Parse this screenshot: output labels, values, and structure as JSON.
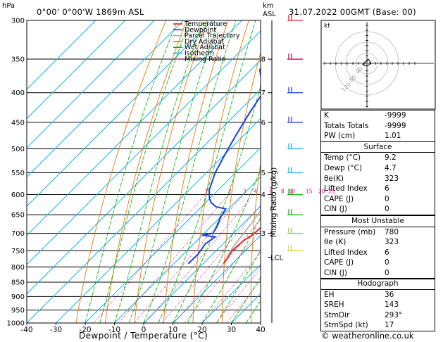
{
  "header": {
    "location": "0°00' 0°00'W 1869m ASL",
    "datetime": "31.07.2022 00GMT (Base: 00)",
    "hpa_unit": "hPa",
    "km_unit": "km",
    "asl": "ASL"
  },
  "footer": {
    "xlabel": "Dewpoint / Temperature (°C)",
    "copyright": "© weatheronline.co.uk"
  },
  "side_labels": {
    "mixing_ratio": "Mixing Ratio (g/kg)",
    "lcl": "LCL"
  },
  "legend": [
    {
      "label": "Temperature",
      "color": "#e8222a",
      "style": "solid"
    },
    {
      "label": "Dewpoint",
      "color": "#1a3fe8",
      "style": "solid"
    },
    {
      "label": "Parcel Trajectory",
      "color": "#aaaaaa",
      "style": "solid"
    },
    {
      "label": "Dry Adiabat",
      "color": "#e07a10",
      "style": "solid"
    },
    {
      "label": "Wet Adiabat",
      "color": "#16b016",
      "style": "solid"
    },
    {
      "label": "Isotherm",
      "color": "#19b4e6",
      "style": "solid"
    },
    {
      "label": "Mixing Ratio",
      "color": "#e0158a",
      "style": "dotted"
    }
  ],
  "chart_data": {
    "type": "line",
    "xlabel": "Dewpoint / Temperature (°C)",
    "ylabel": "hPa",
    "xlim": [
      -40,
      40
    ],
    "ylim": [
      1000,
      300
    ],
    "x_ticks": [
      -40,
      -30,
      -20,
      -10,
      0,
      10,
      20,
      30,
      40
    ],
    "pressure_levels": [
      300,
      350,
      400,
      450,
      500,
      550,
      600,
      650,
      700,
      750,
      800,
      850,
      900,
      950,
      1000
    ],
    "km_ticks": [
      {
        "p": 350,
        "km": "8"
      },
      {
        "p": 400,
        "km": "7"
      },
      {
        "p": 450,
        "km": "6"
      },
      {
        "p": 550,
        "km": "5"
      },
      {
        "p": 600,
        "km": "4"
      },
      {
        "p": 700,
        "km": "3"
      }
    ],
    "mixing_ratio_labels": [
      "1",
      "2",
      "3",
      "4",
      "6",
      "8",
      "10",
      "15",
      "20",
      "25"
    ],
    "mixing_ratio_values": [
      1,
      2,
      3,
      4,
      6,
      8,
      10,
      15,
      20,
      25
    ],
    "lcl_pressure": 770,
    "series": [
      {
        "name": "Temperature",
        "color": "#e8222a",
        "points": [
          [
            -9.5,
            300
          ],
          [
            -8.5,
            340
          ],
          [
            -8,
            355
          ],
          [
            -8.5,
            370
          ],
          [
            -7,
            390
          ],
          [
            -5,
            420
          ],
          [
            -3,
            450
          ],
          [
            0,
            490
          ],
          [
            2,
            520
          ],
          [
            4,
            550
          ],
          [
            5.5,
            580
          ],
          [
            6.5,
            600
          ],
          [
            6,
            615
          ],
          [
            6,
            640
          ],
          [
            7.5,
            680
          ],
          [
            7,
            705
          ],
          [
            6,
            720
          ],
          [
            5.5,
            750
          ],
          [
            6.5,
            775
          ],
          [
            7,
            790
          ]
        ]
      },
      {
        "name": "Dewpoint",
        "color": "#1a3fe8",
        "points": [
          [
            -46,
            300
          ],
          [
            -47,
            330
          ],
          [
            -47,
            365
          ],
          [
            -43,
            380
          ],
          [
            -41,
            390
          ],
          [
            -38,
            400
          ],
          [
            -36,
            430
          ],
          [
            -33,
            470
          ],
          [
            -30,
            510
          ],
          [
            -27,
            550
          ],
          [
            -23,
            590
          ],
          [
            -20,
            610
          ],
          [
            -18,
            620
          ],
          [
            -15,
            630
          ],
          [
            -11,
            635
          ],
          [
            -10,
            655
          ],
          [
            -8,
            680
          ],
          [
            -7,
            700
          ],
          [
            -10,
            705
          ],
          [
            -5,
            710
          ],
          [
            -6,
            730
          ],
          [
            -5,
            760
          ],
          [
            -5,
            790
          ]
        ]
      },
      {
        "name": "Parcel Trajectory",
        "color": "#aaaaaa",
        "points": [
          [
            -20,
            300
          ],
          [
            -18,
            340
          ],
          [
            -15,
            380
          ],
          [
            -12,
            420
          ],
          [
            -9,
            460
          ],
          [
            -6,
            500
          ],
          [
            -3,
            550
          ],
          [
            0,
            600
          ],
          [
            1.5,
            640
          ],
          [
            3,
            680
          ],
          [
            4,
            720
          ],
          [
            5,
            750
          ],
          [
            6,
            770
          ]
        ]
      }
    ]
  },
  "hodograph": {
    "label": "kt",
    "ring_labels": [
      "40",
      "80",
      "120"
    ]
  },
  "indices": {
    "k_label": "K",
    "k_value": "-9999",
    "tt_label": "Totals Totals",
    "tt_value": "-9999",
    "pw_label": "PW (cm)",
    "pw_value": "1.01"
  },
  "surface": {
    "title": "Surface",
    "rows": [
      {
        "label": "Temp (°C)",
        "value": "9.2"
      },
      {
        "label": "Dewp (°C)",
        "value": "4.7"
      },
      {
        "label": "θe(K)",
        "value": "323"
      },
      {
        "label": "Lifted Index",
        "value": "6"
      },
      {
        "label": "CAPE (J)",
        "value": "0"
      },
      {
        "label": "CIN (J)",
        "value": "0"
      }
    ]
  },
  "most_unstable": {
    "title": "Most Unstable",
    "rows": [
      {
        "label": "Pressure (mb)",
        "value": "780"
      },
      {
        "label": "θe (K)",
        "value": "323"
      },
      {
        "label": "Lifted Index",
        "value": "6"
      },
      {
        "label": "CAPE (J)",
        "value": "0"
      },
      {
        "label": "CIN (J)",
        "value": "0"
      }
    ]
  },
  "hodograph_table": {
    "title": "Hodograph",
    "rows": [
      {
        "label": "EH",
        "value": "36"
      },
      {
        "label": "SREH",
        "value": "143"
      },
      {
        "label": "StmDir",
        "value": "293°"
      },
      {
        "label": "StmSpd (kt)",
        "value": "17"
      }
    ]
  }
}
